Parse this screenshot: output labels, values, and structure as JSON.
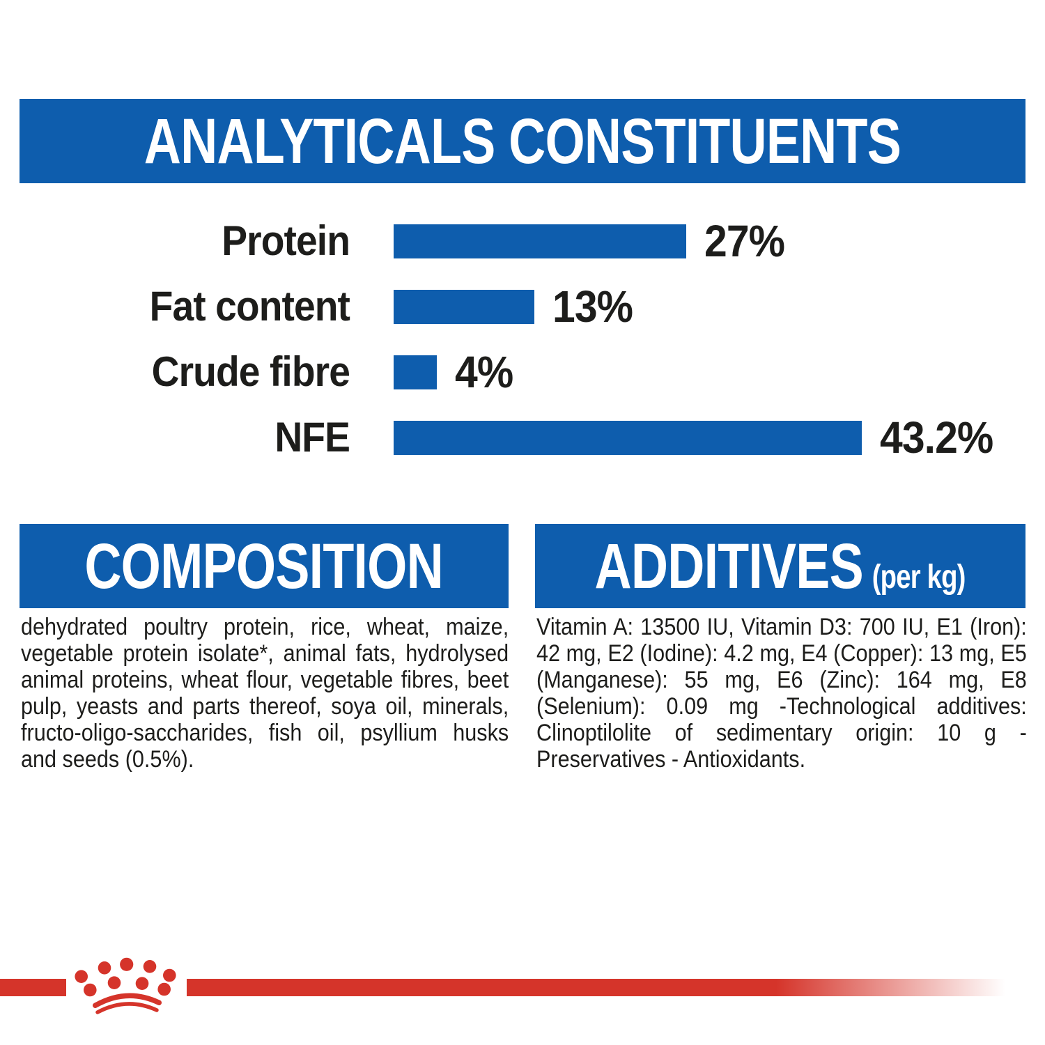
{
  "colors": {
    "brand_blue": "#0e5dad",
    "brand_red": "#d5342a",
    "text": "#1d1d1b"
  },
  "header": {
    "title": "ANALYTICALS CONSTITUENTS"
  },
  "chart_data": {
    "type": "bar",
    "orientation": "horizontal",
    "title": "ANALYTICALS CONSTITUENTS",
    "categories": [
      "Protein",
      "Fat content",
      "Crude fibre",
      "NFE"
    ],
    "values": [
      27,
      13,
      4,
      43.2
    ],
    "value_labels": [
      "27%",
      "13%",
      "4%",
      "43.2%"
    ],
    "unit": "%",
    "xlim": [
      0,
      43.2
    ],
    "bar_color": "#0e5dad",
    "grid": false,
    "legend": false
  },
  "composition": {
    "title": "COMPOSITION",
    "body": "dehydrated poultry protein, rice, wheat, maize, vegetable protein isolate*, animal fats, hydrolysed animal proteins, wheat flour, vegetable fibres, beet pulp, yeasts and parts thereof, soya oil, minerals, fructo-oligo-saccharides, fish oil, psyllium husks and seeds (0.5%)."
  },
  "additives": {
    "title": "ADDITIVES",
    "title_suffix": "(per kg)",
    "body": "Vitamin A: 13500 IU, Vitamin D3: 700 IU, E1 (Iron): 42 mg, E2 (Iodine): 4.2 mg, E4 (Copper): 13 mg, E5 (Manganese): 55 mg, E6 (Zinc): 164 mg, E8 (Selenium): 0.09 mg -Technological additives: Clinoptilolite of sedimentary origin: 10 g - Preservatives - Antioxidants."
  },
  "footer": {
    "logo": "royal-canin-crown-logo"
  }
}
